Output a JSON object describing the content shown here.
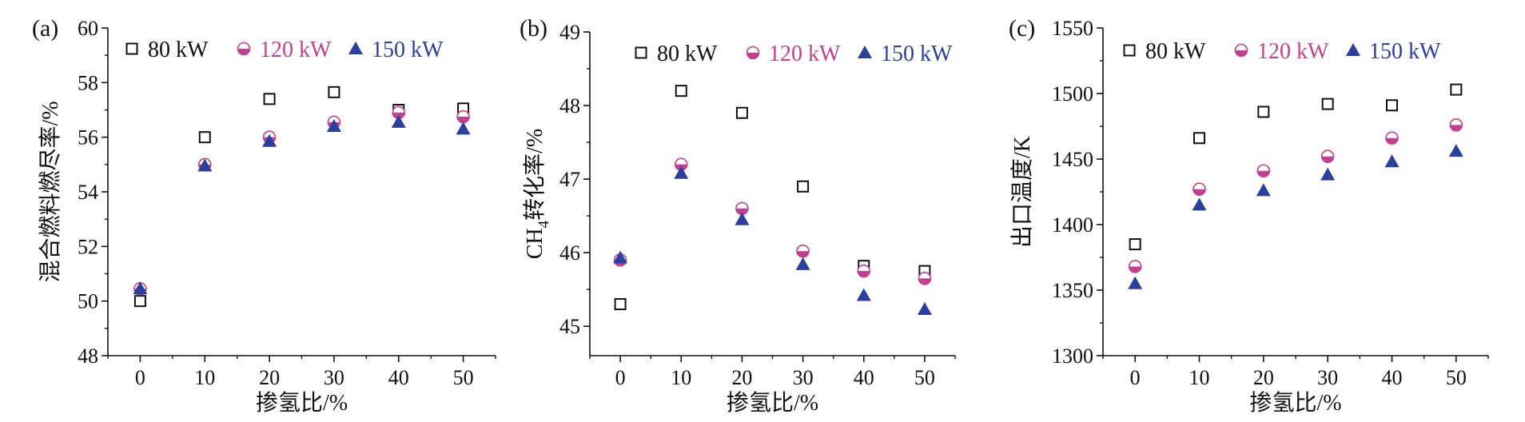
{
  "colors": {
    "series_80": "#111111",
    "series_120": "#c2418f",
    "series_150": "#2b3f9c",
    "axis": "#111111"
  },
  "chart_data": [
    {
      "type": "scatter",
      "panel_label": "(a)",
      "xlabel": "掺氢比/%",
      "ylabel": "混合燃料燃尽率/%",
      "xlim": [
        -5,
        55
      ],
      "ylim": [
        48,
        60
      ],
      "x_ticks": [
        0,
        10,
        20,
        30,
        40,
        50
      ],
      "y_ticks": [
        48,
        50,
        52,
        54,
        56,
        58,
        60
      ],
      "legend_position": "top",
      "x": [
        0,
        10,
        20,
        30,
        40,
        50
      ],
      "series": [
        {
          "name": "80 kW",
          "marker": "open-square",
          "values": [
            50.0,
            56.0,
            57.4,
            57.65,
            57.0,
            57.05
          ]
        },
        {
          "name": "120 kW",
          "marker": "half-filled-circle",
          "values": [
            50.45,
            55.0,
            56.0,
            56.55,
            56.9,
            56.75
          ]
        },
        {
          "name": "150 kW",
          "marker": "filled-triangle",
          "values": [
            50.45,
            54.95,
            55.85,
            56.4,
            56.55,
            56.3
          ]
        }
      ]
    },
    {
      "type": "scatter",
      "panel_label": "(b)",
      "xlabel": "掺氢比/%",
      "ylabel_main": "CH",
      "ylabel_sub": "4",
      "ylabel_rest": "转化率/%",
      "xlim": [
        -5,
        55
      ],
      "ylim": [
        44.6,
        49
      ],
      "x_ticks": [
        0,
        10,
        20,
        30,
        40,
        50
      ],
      "y_ticks": [
        45,
        46,
        47,
        48,
        49
      ],
      "legend_position": "top",
      "x": [
        0,
        10,
        20,
        30,
        40,
        50
      ],
      "series": [
        {
          "name": "80 kW",
          "marker": "open-square",
          "values": [
            45.3,
            48.2,
            47.9,
            46.9,
            45.82,
            45.75
          ]
        },
        {
          "name": "120 kW",
          "marker": "half-filled-circle",
          "values": [
            45.9,
            47.2,
            46.6,
            46.02,
            45.75,
            45.65
          ]
        },
        {
          "name": "150 kW",
          "marker": "filled-triangle",
          "values": [
            45.93,
            47.08,
            46.45,
            45.84,
            45.42,
            45.23
          ]
        }
      ]
    },
    {
      "type": "scatter",
      "panel_label": "(c)",
      "xlabel": "掺氢比/%",
      "ylabel": "出口温度/K",
      "xlim": [
        -5,
        55
      ],
      "ylim": [
        1300,
        1550
      ],
      "x_ticks": [
        0,
        10,
        20,
        30,
        40,
        50
      ],
      "y_ticks": [
        1300,
        1350,
        1400,
        1450,
        1500,
        1550
      ],
      "legend_position": "top",
      "x": [
        0,
        10,
        20,
        30,
        40,
        50
      ],
      "series": [
        {
          "name": "80 kW",
          "marker": "open-square",
          "values": [
            1385,
            1466,
            1486,
            1492,
            1491,
            1503
          ]
        },
        {
          "name": "120 kW",
          "marker": "half-filled-circle",
          "values": [
            1368,
            1427,
            1441,
            1452,
            1466,
            1476
          ]
        },
        {
          "name": "150 kW",
          "marker": "filled-triangle",
          "values": [
            1355,
            1415,
            1426,
            1438,
            1448,
            1456
          ]
        }
      ]
    }
  ]
}
